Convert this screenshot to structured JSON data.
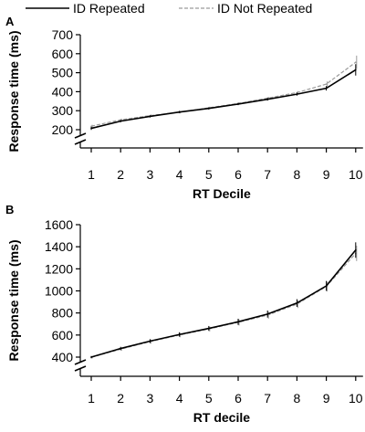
{
  "legend": {
    "position": "top",
    "entries": [
      {
        "label": "ID Repeated",
        "color": "#000000",
        "dash": "solid"
      },
      {
        "label": "ID Not Repeated",
        "color": "#9a9a9a",
        "dash": "dashed"
      }
    ]
  },
  "chart_data": [
    {
      "type": "line",
      "panel_label": "A",
      "title": "",
      "xlabel": "RT Decile",
      "ylabel": "Response time (ms)",
      "x": [
        1,
        2,
        3,
        4,
        5,
        6,
        7,
        8,
        9,
        10
      ],
      "ylim": [
        200,
        700
      ],
      "yticks": [
        200,
        300,
        400,
        500,
        600,
        700
      ],
      "axis_break": true,
      "grid": false,
      "series": [
        {
          "name": "ID Repeated",
          "values": [
            207,
            245,
            270,
            293,
            312,
            335,
            360,
            387,
            418,
            515
          ],
          "errors": [
            8,
            6,
            6,
            6,
            6,
            6,
            7,
            8,
            12,
            30
          ]
        },
        {
          "name": "ID Not Repeated",
          "values": [
            218,
            252,
            274,
            292,
            315,
            338,
            366,
            395,
            440,
            555
          ],
          "errors": [
            8,
            6,
            6,
            6,
            6,
            6,
            7,
            8,
            14,
            35
          ]
        }
      ]
    },
    {
      "type": "line",
      "panel_label": "B",
      "title": "",
      "xlabel": "RT decile",
      "ylabel": "Response time (ms)",
      "x": [
        1,
        2,
        3,
        4,
        5,
        6,
        7,
        8,
        9,
        10
      ],
      "ylim": [
        400,
        1600
      ],
      "yticks": [
        400,
        600,
        800,
        1000,
        1200,
        1400,
        1600
      ],
      "axis_break": true,
      "grid": false,
      "series": [
        {
          "name": "ID Repeated",
          "values": [
            400,
            478,
            545,
            605,
            660,
            720,
            790,
            890,
            1045,
            1370
          ],
          "errors": [
            10,
            15,
            18,
            20,
            22,
            28,
            32,
            35,
            45,
            70
          ]
        },
        {
          "name": "ID Not Repeated",
          "values": [
            398,
            472,
            540,
            600,
            655,
            715,
            780,
            880,
            1040,
            1340
          ],
          "errors": [
            10,
            15,
            18,
            20,
            22,
            28,
            32,
            35,
            45,
            70
          ]
        }
      ]
    }
  ]
}
